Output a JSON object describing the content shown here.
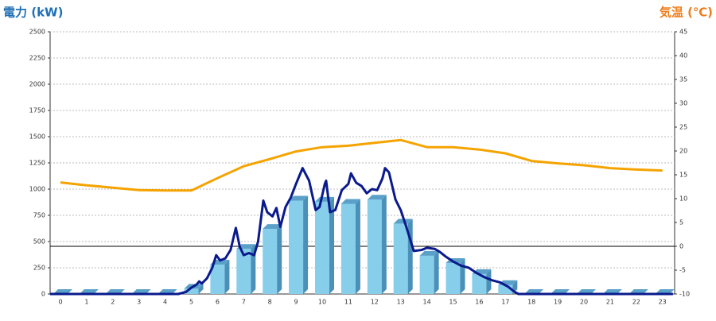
{
  "chart_data": {
    "type": "combo",
    "title": "電力 (kW)",
    "y2_title": "気温 (℃)",
    "categories": [
      "0",
      "1",
      "2",
      "3",
      "4",
      "5",
      "6",
      "7",
      "8",
      "9",
      "10",
      "11",
      "12",
      "13",
      "14",
      "15",
      "16",
      "17",
      "18",
      "19",
      "20",
      "21",
      "22",
      "23"
    ],
    "ylim": [
      0,
      2500
    ],
    "yticks": [
      0,
      250,
      500,
      750,
      1000,
      1250,
      1500,
      1750,
      2000,
      2250,
      2500
    ],
    "y2lim": [
      -10,
      45
    ],
    "y2ticks": [
      -10,
      -5,
      0,
      5,
      10,
      15,
      20,
      25,
      30,
      35,
      40,
      45
    ],
    "grid": true,
    "series": [
      {
        "type": "bar",
        "color": "#87ceeb",
        "values": [
          0,
          0,
          0,
          0,
          0,
          50,
          280,
          430,
          620,
          890,
          880,
          860,
          900,
          670,
          365,
          295,
          190,
          85,
          0,
          0,
          0,
          0,
          0,
          0
        ]
      },
      {
        "type": "line",
        "color": "#0a1a8c",
        "x": [
          -0.4,
          4.5,
          4.8,
          5.0,
          5.2,
          5.3,
          5.4,
          5.6,
          5.8,
          5.95,
          6.1,
          6.3,
          6.5,
          6.7,
          6.85,
          7.0,
          7.2,
          7.4,
          7.55,
          7.75,
          7.9,
          8.1,
          8.25,
          8.4,
          8.6,
          8.8,
          9.0,
          9.25,
          9.5,
          9.75,
          9.9,
          10.1,
          10.15,
          10.3,
          10.5,
          10.75,
          11.0,
          11.1,
          11.3,
          11.5,
          11.7,
          11.9,
          12.1,
          12.3,
          12.4,
          12.55,
          12.8,
          13.0,
          13.2,
          13.5,
          13.8,
          14.0,
          14.3,
          14.5,
          14.7,
          15.0,
          15.3,
          15.6,
          15.9,
          16.2,
          16.5,
          16.8,
          17.1,
          17.35,
          17.5,
          23.4
        ],
        "values": [
          0,
          0,
          20,
          60,
          90,
          120,
          100,
          150,
          250,
          370,
          320,
          340,
          420,
          630,
          450,
          370,
          390,
          370,
          500,
          890,
          780,
          740,
          820,
          640,
          830,
          920,
          1050,
          1200,
          1080,
          800,
          830,
          1050,
          1080,
          780,
          800,
          990,
          1050,
          1150,
          1060,
          1030,
          960,
          1000,
          990,
          1100,
          1200,
          1160,
          900,
          800,
          650,
          410,
          420,
          440,
          430,
          400,
          360,
          310,
          270,
          250,
          200,
          160,
          130,
          110,
          70,
          20,
          0,
          0
        ]
      },
      {
        "type": "line",
        "axis": "y2",
        "color": "#f5a300",
        "values": [
          13.4,
          12.8,
          12.3,
          11.8,
          11.7,
          11.7,
          14.3,
          16.8,
          18.3,
          19.9,
          20.8,
          21.1,
          21.7,
          22.3,
          20.8,
          20.8,
          20.3,
          19.5,
          17.9,
          17.4,
          17.0,
          16.4,
          16.1,
          15.9
        ]
      }
    ]
  }
}
